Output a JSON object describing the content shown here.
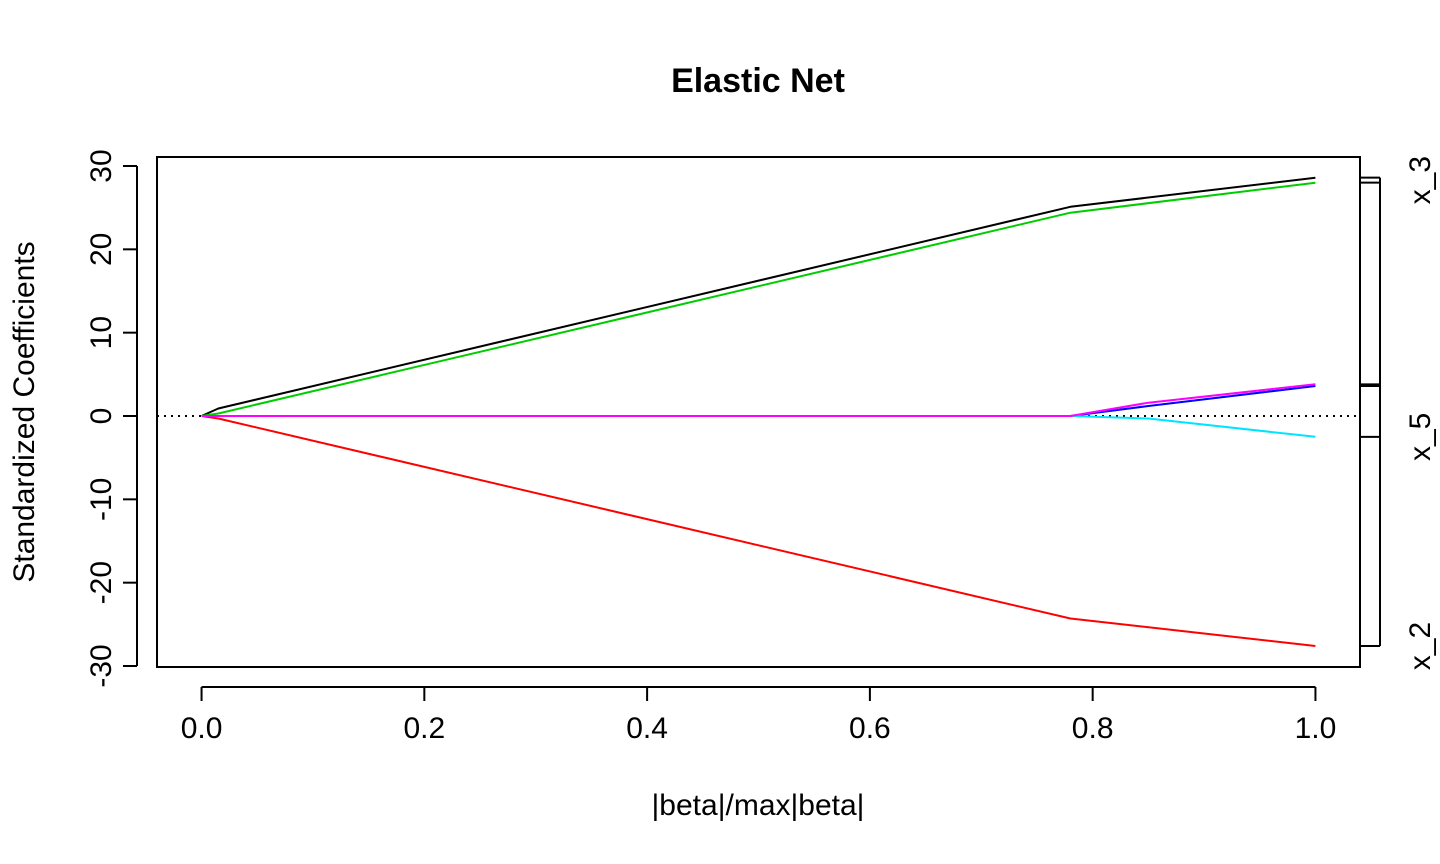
{
  "chart_data": {
    "type": "line",
    "title": "Elastic Net",
    "xlabel": "|beta|/max|beta|",
    "ylabel": "Standardized Coefficients",
    "xlim": [
      -0.04,
      1.04
    ],
    "ylim": [
      -30,
      30
    ],
    "x_ticks": [
      0.0,
      0.2,
      0.4,
      0.6,
      0.8,
      1.0
    ],
    "x_tick_labels": [
      "0.0",
      "0.2",
      "0.4",
      "0.6",
      "0.8",
      "1.0"
    ],
    "y_ticks": [
      -30,
      -20,
      -10,
      0,
      10,
      20,
      30
    ],
    "y_tick_labels": [
      "-30",
      "-20",
      "-10",
      "0",
      "10",
      "20",
      "30"
    ],
    "zero_line": true,
    "legend": "none",
    "series": [
      {
        "color": "#000000",
        "x": [
          0,
          0.015,
          0.78,
          1.0
        ],
        "y": [
          0,
          0.9,
          25.1,
          28.6
        ]
      },
      {
        "color": "#00cd00",
        "x": [
          0,
          0.015,
          0.78,
          1.0
        ],
        "y": [
          0,
          0.3,
          24.4,
          28.0
        ]
      },
      {
        "color": "#ff0000",
        "x": [
          0,
          0.015,
          0.78,
          1.0
        ],
        "y": [
          0,
          -0.3,
          -24.3,
          -27.6
        ]
      },
      {
        "color": "#0000ff",
        "x": [
          0,
          0.015,
          0.78,
          0.85,
          1.0
        ],
        "y": [
          0,
          0,
          0,
          1.2,
          3.6
        ]
      },
      {
        "color": "#00e5ff",
        "x": [
          0,
          0.015,
          0.78,
          0.85,
          1.0
        ],
        "y": [
          0,
          0,
          0,
          -0.3,
          -2.5
        ]
      },
      {
        "color": "#ff00ff",
        "x": [
          0,
          0.015,
          0.78,
          0.85,
          1.0
        ],
        "y": [
          0,
          0,
          0,
          1.6,
          3.8
        ]
      }
    ],
    "right_axis": {
      "tick_values": [
        28.6,
        28.0,
        3.8,
        3.6,
        -2.5,
        -27.6
      ],
      "labels": [
        {
          "text": "x_3",
          "y": 28.3
        },
        {
          "text": "x_5",
          "y": -2.5
        },
        {
          "text": "x_2",
          "y": -27.6
        }
      ]
    }
  }
}
